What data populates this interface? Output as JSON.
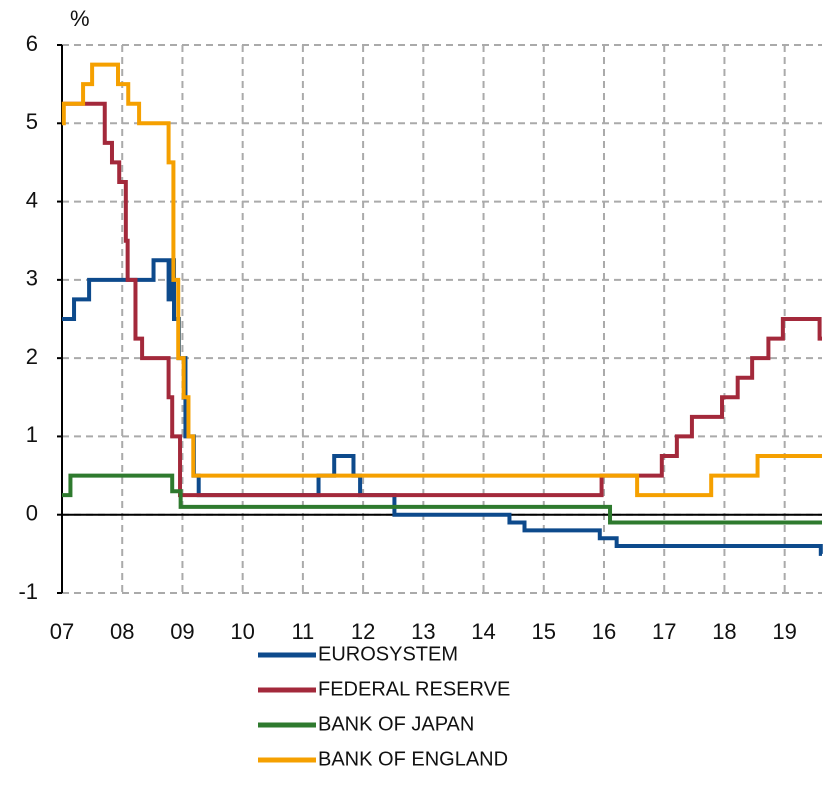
{
  "chart_data": {
    "type": "line",
    "step": "post",
    "y_unit_label": "%",
    "xlim": [
      2007,
      2019.62
    ],
    "xticks": [
      {
        "value": 2007,
        "label": "07"
      },
      {
        "value": 2008,
        "label": "08"
      },
      {
        "value": 2009,
        "label": "09"
      },
      {
        "value": 2010,
        "label": "10"
      },
      {
        "value": 2011,
        "label": "11"
      },
      {
        "value": 2012,
        "label": "12"
      },
      {
        "value": 2013,
        "label": "13"
      },
      {
        "value": 2014,
        "label": "14"
      },
      {
        "value": 2015,
        "label": "15"
      },
      {
        "value": 2016,
        "label": "16"
      },
      {
        "value": 2017,
        "label": "17"
      },
      {
        "value": 2018,
        "label": "18"
      },
      {
        "value": 2019,
        "label": "19"
      }
    ],
    "ylim": [
      -1,
      6
    ],
    "yticks": [
      -1,
      0,
      1,
      2,
      3,
      4,
      5,
      6
    ],
    "grid": true,
    "series": [
      {
        "name": "EUROSYSTEM",
        "color": "#0d4a8c",
        "x": [
          2007,
          2007.2,
          2007.45,
          2008.52,
          2008.77,
          2008.8,
          2008.86,
          2008.94,
          2009.05,
          2009.19,
          2009.27,
          2011.26,
          2011.52,
          2011.84,
          2011.95,
          2012.52,
          2014.43,
          2014.68,
          2015.93,
          2016.21,
          2019.6,
          2019.62
        ],
        "values": [
          2.5,
          2.75,
          3.0,
          3.25,
          2.75,
          3.25,
          2.5,
          2.0,
          1.0,
          0.5,
          0.25,
          0.5,
          0.75,
          0.5,
          0.25,
          0,
          -0.1,
          -0.2,
          -0.3,
          -0.4,
          -0.5,
          -0.5
        ]
      },
      {
        "name": "FEDERAL RESERVE",
        "color": "#a3293b",
        "x": [
          2007,
          2007.71,
          2007.83,
          2007.95,
          2008.06,
          2008.09,
          2008.22,
          2008.33,
          2008.77,
          2008.83,
          2008.96,
          2015.96,
          2016.96,
          2017.21,
          2017.46,
          2017.96,
          2018.22,
          2018.46,
          2018.73,
          2018.97,
          2019.58,
          2019.62
        ],
        "values": [
          5.25,
          4.75,
          4.5,
          4.25,
          3.5,
          3.0,
          2.25,
          2.0,
          1.5,
          1.0,
          0.25,
          0.5,
          0.75,
          1.0,
          1.25,
          1.5,
          1.75,
          2.0,
          2.25,
          2.5,
          2.25,
          2.25
        ]
      },
      {
        "name": "BANK OF JAPAN",
        "color": "#2e7a2e",
        "x": [
          2007,
          2007.14,
          2008.83,
          2008.97,
          2016.1,
          2019.62
        ],
        "values": [
          0.25,
          0.5,
          0.3,
          0.1,
          -0.1,
          -0.1
        ]
      },
      {
        "name": "BANK OF ENGLAND",
        "color": "#f5a000",
        "x": [
          2007,
          2007.03,
          2007.35,
          2007.5,
          2007.93,
          2008.1,
          2008.28,
          2008.77,
          2008.85,
          2008.93,
          2009.02,
          2009.1,
          2009.18,
          2016.55,
          2017.78,
          2018.55,
          2019.62
        ],
        "values": [
          5.0,
          5.25,
          5.5,
          5.75,
          5.5,
          5.25,
          5.0,
          4.5,
          3.0,
          2.0,
          1.5,
          1.0,
          0.5,
          0.25,
          0.5,
          0.75,
          0.75
        ]
      }
    ]
  }
}
